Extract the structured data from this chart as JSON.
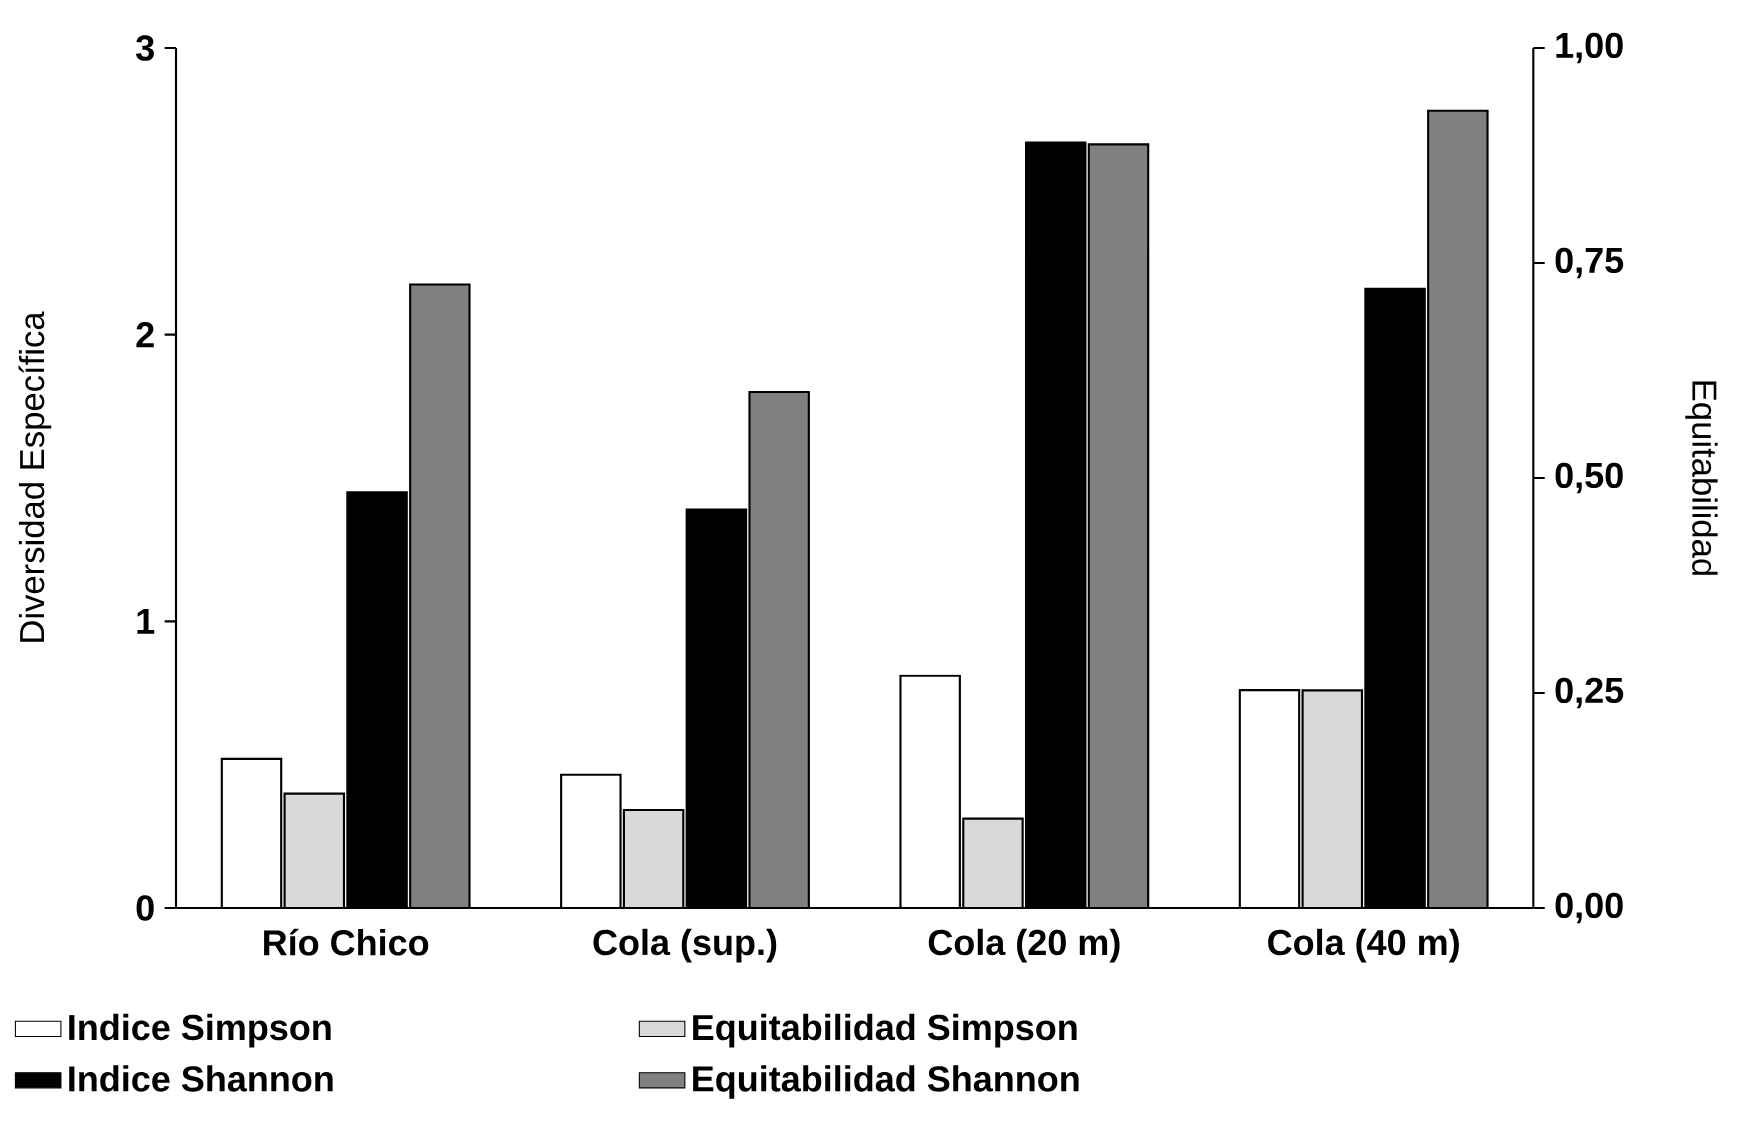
{
  "chart_data": {
    "type": "bar",
    "categories": [
      "Río Chico",
      "Cola (sup.)",
      "Cola (20 m)",
      "Cola (40 m)"
    ],
    "series": [
      {
        "name": "Indice Simpson",
        "color": "#ffffff",
        "values": [
          0.52,
          0.465,
          0.81,
          0.76
        ]
      },
      {
        "name": "Equitabilidad Simpson",
        "color": "#d9d9d9",
        "axis": "y2",
        "values": [
          0.133,
          0.114,
          0.104,
          0.253
        ]
      },
      {
        "name": "Indice Shannon",
        "color": "#000000",
        "values": [
          1.45,
          1.39,
          2.67,
          2.16
        ]
      },
      {
        "name": "Equitabilidad Shannon",
        "color": "#808080",
        "axis": "y2",
        "values": [
          0.725,
          0.6,
          0.888,
          0.927
        ]
      }
    ],
    "ylabel": "Diversidad Específica",
    "y2label": "Equitabilidad",
    "ylim": [
      0,
      3
    ],
    "yticks": [
      0,
      1,
      2,
      3
    ],
    "y2lim": [
      0,
      1
    ],
    "y2ticks": [
      {
        "value": 0,
        "label": "0,00"
      },
      {
        "value": 0.25,
        "label": "0,25"
      },
      {
        "value": 0.5,
        "label": "0,50"
      },
      {
        "value": 0.75,
        "label": "0,75"
      },
      {
        "value": 1,
        "label": "1,00"
      }
    ],
    "legend": "bottom"
  }
}
